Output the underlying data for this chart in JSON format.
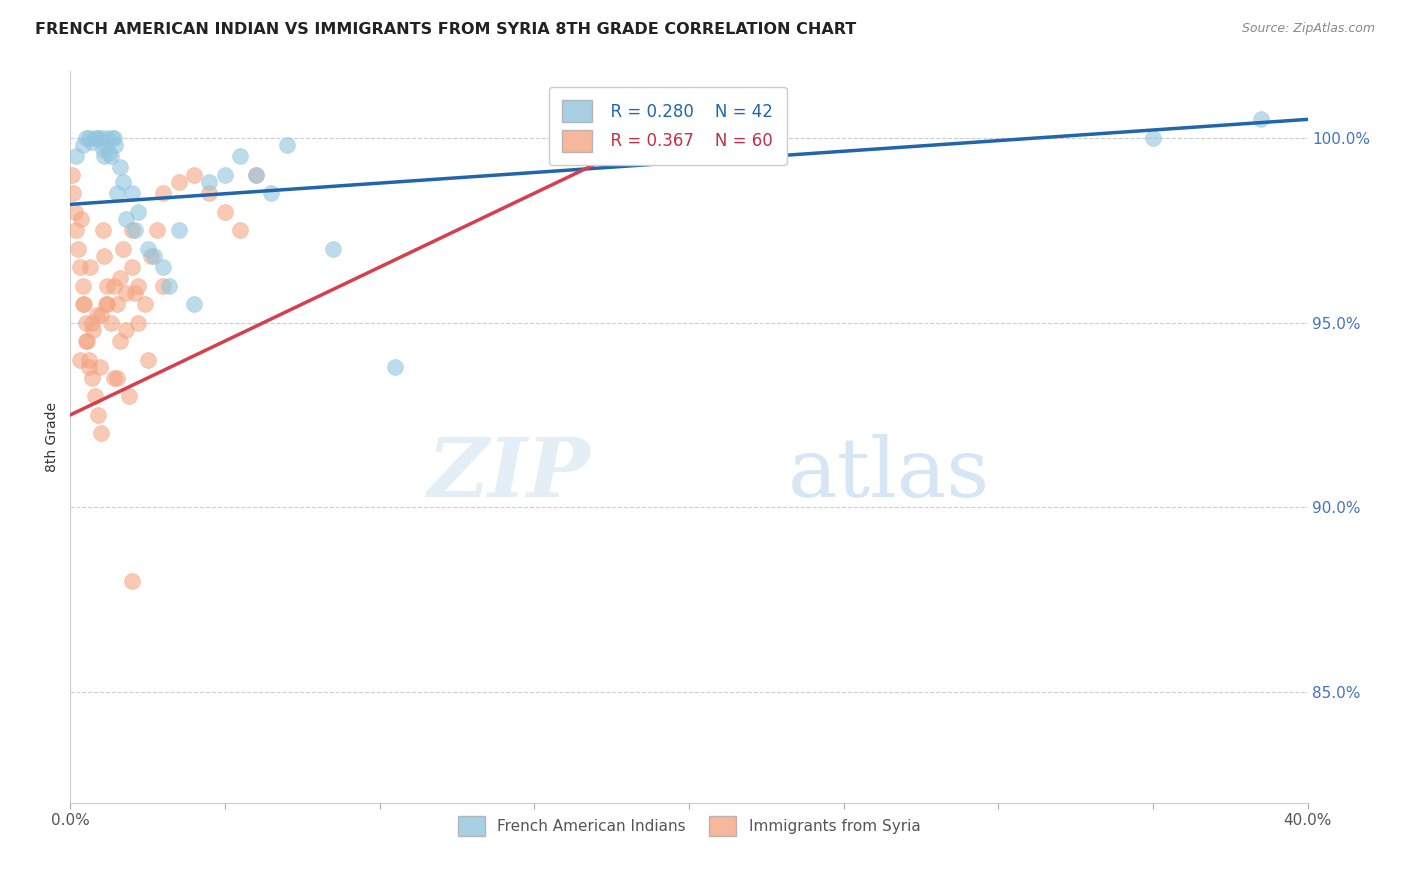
{
  "title": "FRENCH AMERICAN INDIAN VS IMMIGRANTS FROM SYRIA 8TH GRADE CORRELATION CHART",
  "source": "Source: ZipAtlas.com",
  "ylabel": "8th Grade",
  "xlim": [
    0.0,
    40.0
  ],
  "ylim": [
    82.0,
    101.8
  ],
  "yticks": [
    85.0,
    90.0,
    95.0,
    100.0
  ],
  "ytick_labels": [
    "85.0%",
    "90.0%",
    "95.0%",
    "100.0%"
  ],
  "xticks": [
    0.0,
    5.0,
    10.0,
    15.0,
    20.0,
    25.0,
    30.0,
    35.0,
    40.0
  ],
  "legend_r_blue": "R = 0.280",
  "legend_n_blue": "N = 42",
  "legend_r_pink": "R = 0.367",
  "legend_n_pink": "N = 60",
  "blue_color": "#92c5de",
  "pink_color": "#f4a582",
  "blue_line_color": "#2166ac",
  "pink_line_color": "#d6404e",
  "blue_scatter_x": [
    0.2,
    0.4,
    0.5,
    0.6,
    0.7,
    0.8,
    0.9,
    1.0,
    1.05,
    1.1,
    1.15,
    1.2,
    1.25,
    1.3,
    1.35,
    1.4,
    1.45,
    1.5,
    1.6,
    1.7,
    1.8,
    2.0,
    2.1,
    2.2,
    2.5,
    2.7,
    3.0,
    3.2,
    3.5,
    4.0,
    4.5,
    5.0,
    5.5,
    6.0,
    6.5,
    7.0,
    8.5,
    10.5,
    20.0,
    22.0,
    35.0,
    38.5
  ],
  "blue_scatter_y": [
    99.5,
    99.8,
    100.0,
    100.0,
    99.9,
    100.0,
    100.0,
    100.0,
    99.7,
    99.5,
    99.8,
    100.0,
    99.6,
    99.5,
    100.0,
    100.0,
    99.8,
    98.5,
    99.2,
    98.8,
    97.8,
    98.5,
    97.5,
    98.0,
    97.0,
    96.8,
    96.5,
    96.0,
    97.5,
    95.5,
    98.8,
    99.0,
    99.5,
    99.0,
    98.5,
    99.8,
    97.0,
    93.8,
    100.0,
    100.0,
    100.0,
    100.5
  ],
  "pink_scatter_x": [
    0.05,
    0.1,
    0.15,
    0.2,
    0.25,
    0.3,
    0.35,
    0.4,
    0.45,
    0.5,
    0.55,
    0.6,
    0.65,
    0.7,
    0.75,
    0.8,
    0.85,
    0.9,
    0.95,
    1.0,
    1.05,
    1.1,
    1.15,
    1.2,
    1.3,
    1.4,
    1.5,
    1.6,
    1.7,
    1.8,
    1.9,
    2.0,
    2.1,
    2.2,
    2.4,
    2.6,
    2.8,
    3.0,
    3.5,
    4.0,
    4.5,
    5.0,
    5.5,
    6.0,
    1.0,
    1.2,
    1.4,
    1.6,
    1.8,
    2.0,
    2.2,
    0.3,
    0.4,
    0.5,
    0.6,
    0.7,
    2.5,
    1.5,
    3.0,
    2.0
  ],
  "pink_scatter_y": [
    99.0,
    98.5,
    98.0,
    97.5,
    97.0,
    96.5,
    97.8,
    96.0,
    95.5,
    95.0,
    94.5,
    94.0,
    96.5,
    93.5,
    94.8,
    93.0,
    95.2,
    92.5,
    93.8,
    92.0,
    97.5,
    96.8,
    95.5,
    96.0,
    95.0,
    93.5,
    95.5,
    96.2,
    97.0,
    94.8,
    93.0,
    97.5,
    95.8,
    96.0,
    95.5,
    96.8,
    97.5,
    98.5,
    98.8,
    99.0,
    98.5,
    98.0,
    97.5,
    99.0,
    95.2,
    95.5,
    96.0,
    94.5,
    95.8,
    96.5,
    95.0,
    94.0,
    95.5,
    94.5,
    93.8,
    95.0,
    94.0,
    93.5,
    96.0,
    88.0
  ],
  "blue_trendline_x0": 0.0,
  "blue_trendline_x1": 40.0,
  "blue_trendline_y0": 98.2,
  "blue_trendline_y1": 100.5,
  "pink_trendline_x0": 0.0,
  "pink_trendline_x1": 20.0,
  "pink_trendline_y0": 92.5,
  "pink_trendline_y1": 100.5
}
